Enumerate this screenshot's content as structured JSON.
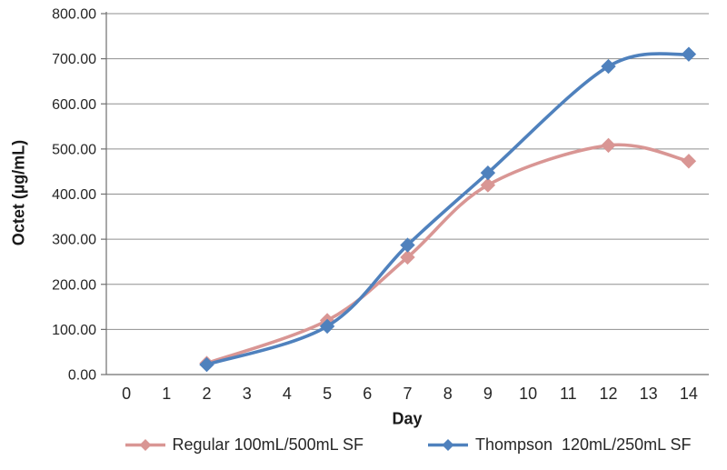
{
  "chart_data": {
    "type": "line",
    "title": "",
    "xlabel": "Day",
    "ylabel": "Octet (µg/mL)",
    "categories": [
      "0",
      "1",
      "2",
      "3",
      "4",
      "5",
      "6",
      "7",
      "8",
      "9",
      "10",
      "11",
      "12",
      "13",
      "14"
    ],
    "ylim": [
      0,
      800
    ],
    "y_ticks": [
      0,
      100,
      200,
      300,
      400,
      500,
      600,
      700,
      800
    ],
    "y_tick_labels": [
      "0.00",
      "100.00",
      "200.00",
      "300.00",
      "400.00",
      "500.00",
      "600.00",
      "700.00",
      "800.00"
    ],
    "grid": true,
    "legend_position": "bottom",
    "line_style": "smooth",
    "marker": "diamond",
    "series": [
      {
        "name": "Regular 100mL/500mL SF",
        "color": "#d99694",
        "points": [
          {
            "day": 2,
            "value": 25
          },
          {
            "day": 5,
            "value": 120
          },
          {
            "day": 7,
            "value": 260
          },
          {
            "day": 9,
            "value": 420
          },
          {
            "day": 12,
            "value": 508
          },
          {
            "day": 14,
            "value": 473
          }
        ]
      },
      {
        "name": "Thompson  120mL/250mL SF",
        "color": "#4f81bd",
        "points": [
          {
            "day": 2,
            "value": 22
          },
          {
            "day": 5,
            "value": 107
          },
          {
            "day": 7,
            "value": 287
          },
          {
            "day": 9,
            "value": 447
          },
          {
            "day": 12,
            "value": 683
          },
          {
            "day": 14,
            "value": 710
          }
        ]
      }
    ]
  },
  "colors": {
    "grid": "#8f8f8f",
    "axis": "#6f6f6f",
    "text": "#262626",
    "background": "#ffffff"
  }
}
